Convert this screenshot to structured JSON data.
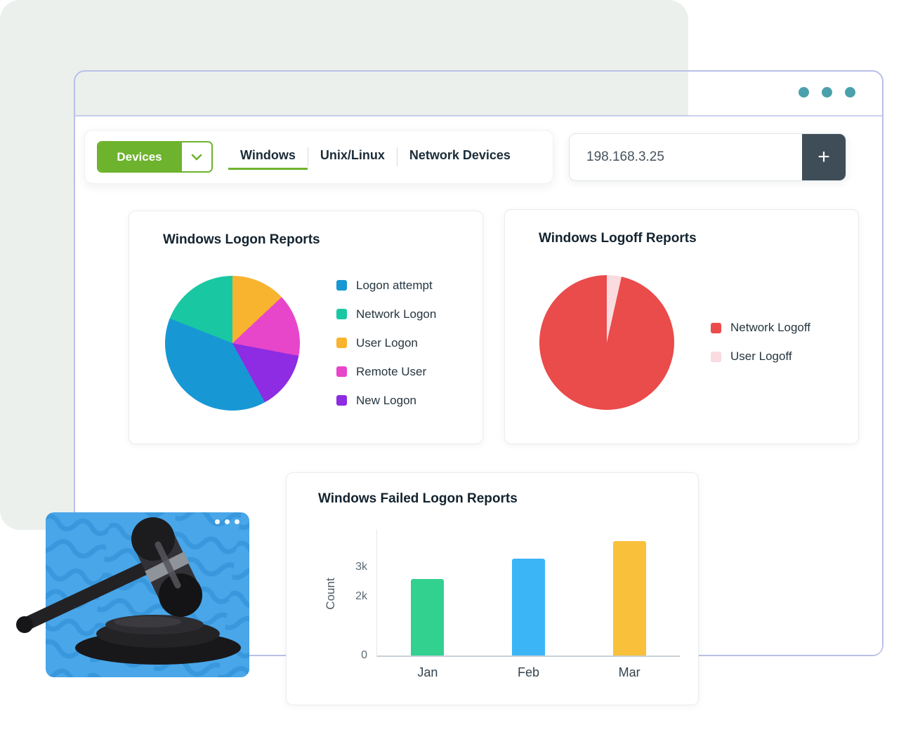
{
  "theme": {
    "accent_green": "#6db32e",
    "dot_teal": "#4ba1ab",
    "window_border": "#b9c0e7",
    "add_button_bg": "#3f4d58",
    "panel_bg": "#ecf0ed"
  },
  "toolbar": {
    "devices_button": {
      "label": "Devices"
    },
    "tabs": [
      {
        "label": "Windows",
        "active": true
      },
      {
        "label": "Unix/Linux",
        "active": false
      },
      {
        "label": "Network Devices",
        "active": false
      }
    ],
    "search": {
      "value": "198.168.3.25",
      "add_glyph": "+"
    }
  },
  "chart_data": [
    {
      "type": "pie",
      "title": "Windows Logon Reports",
      "slices": [
        {
          "label": "User Logon",
          "color": "#f8b32f",
          "pct": 13
        },
        {
          "label": "Remote User",
          "color": "#e746cb",
          "pct": 15
        },
        {
          "label": "New Logon",
          "color": "#8d2ce2",
          "pct": 14
        },
        {
          "label": "Logon attempt",
          "color": "#1798d5",
          "pct": 39
        },
        {
          "label": "Network Logon",
          "color": "#19c8a3",
          "pct": 19
        }
      ],
      "legend": [
        "Logon attempt",
        "Network Logon",
        "User Logon",
        "Remote User",
        "New Logon"
      ],
      "legend_position": "right"
    },
    {
      "type": "pie",
      "title": "Windows Logoff Reports",
      "slices": [
        {
          "label": "User Logoff",
          "color": "#f9dbe0",
          "pct": 3.5
        },
        {
          "label": "Network Logoff",
          "color": "#ea4b4b",
          "pct": 96.5
        }
      ],
      "legend": [
        "Network Logoff",
        "User Logoff"
      ],
      "legend_position": "right"
    },
    {
      "type": "bar",
      "title": "Windows Failed Logon Reports",
      "categories": [
        "Jan",
        "Feb",
        "Mar"
      ],
      "values": [
        2.6,
        3.3,
        3.9
      ],
      "unit": "k",
      "bar_colors": [
        "#33d18f",
        "#3cb5f7",
        "#f8c03b"
      ],
      "ylabel": "Count",
      "yticks": [
        {
          "label": "0",
          "value": 0
        },
        {
          "label": "2k",
          "value": 2
        },
        {
          "label": "3k",
          "value": 3
        }
      ],
      "ylim": [
        0,
        4.3
      ],
      "grid": false,
      "legend_position": "none"
    }
  ]
}
